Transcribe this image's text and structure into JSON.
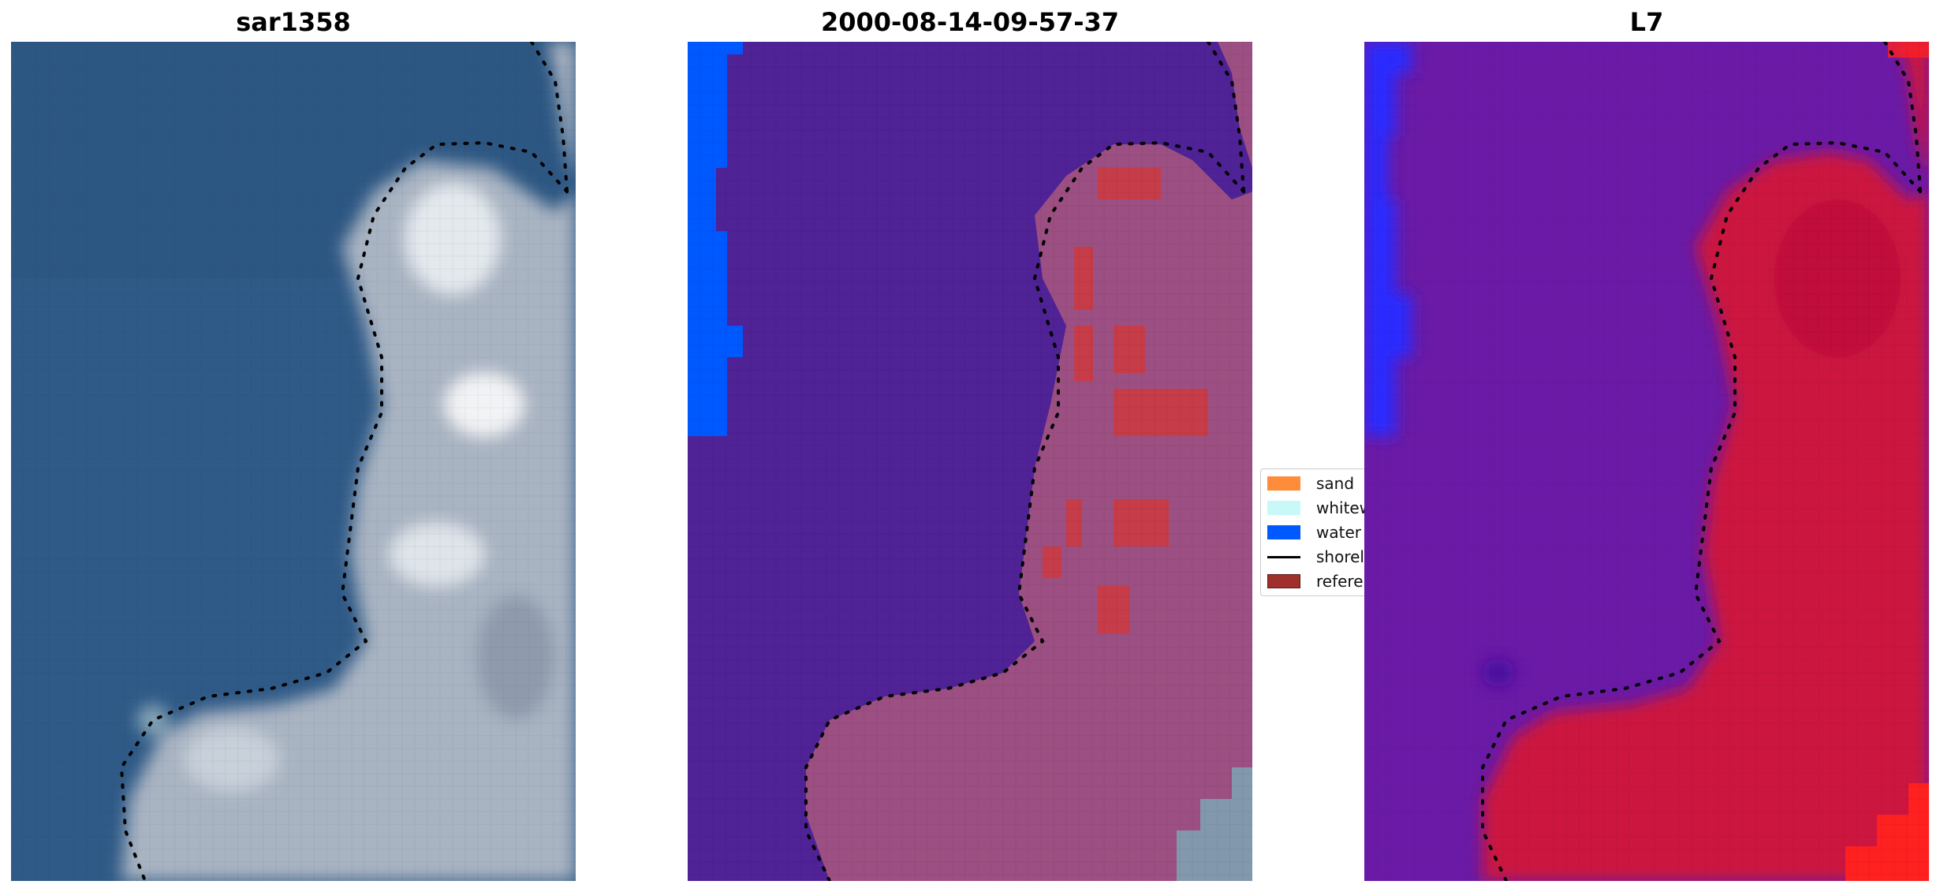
{
  "panels": [
    {
      "title": "sar1358"
    },
    {
      "title": "2000-08-14-09-57-37"
    },
    {
      "title": "L7"
    }
  ],
  "legend": {
    "items": [
      {
        "label": "sand",
        "color": "#ff8c3a"
      },
      {
        "label": "whitewater",
        "color": "#c8f8f8"
      },
      {
        "label": "water",
        "color": "#0059ff"
      },
      {
        "label": "shoreline",
        "color": "#000000"
      },
      {
        "label": "reference shoreline",
        "color": "#a0302c"
      }
    ]
  },
  "colors": {
    "rgb_water": "#2f5a87",
    "rgb_land": "#a9b4c2",
    "class_water": "#4f2296",
    "class_land": "#9c4f82",
    "class_sand": "#c63c48",
    "class_blue": "#0059ff",
    "ndwi_water": "#6a1aa6",
    "ndwi_land": "#cc1440",
    "ndwi_red": "#ff2020"
  }
}
